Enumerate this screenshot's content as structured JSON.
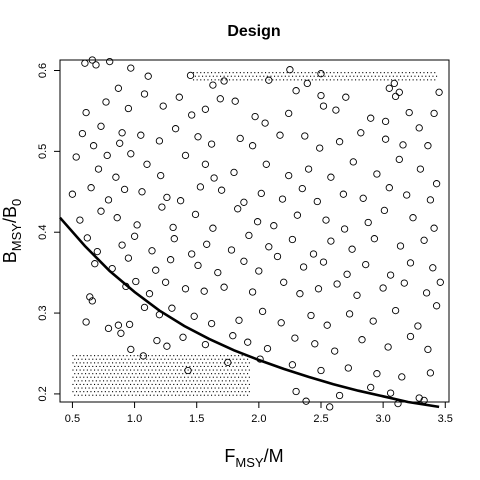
{
  "chart_data": {
    "type": "scatter",
    "title": "Design",
    "xlabel": {
      "main": "F",
      "sub": "MSY",
      "rest": "/M"
    },
    "ylabel": {
      "main": "B",
      "sub1": "MSY",
      "mid": "/B",
      "sub2": "0"
    },
    "xlim": [
      0.4,
      3.53
    ],
    "ylim": [
      0.19,
      0.613
    ],
    "xticks": [
      "0.5",
      "1.0",
      "1.5",
      "2.0",
      "2.5",
      "3.0",
      "3.5"
    ],
    "yticks": [
      "0.2",
      "0.3",
      "0.4",
      "0.5",
      "0.6"
    ],
    "grid": false,
    "colors": {
      "points": "#000000",
      "curve": "#000000",
      "frame": "#000000"
    },
    "curve": {
      "description": "boundary",
      "x": [
        0.4,
        0.6,
        0.8,
        1.0,
        1.2,
        1.4,
        1.6,
        1.8,
        2.0,
        2.2,
        2.4,
        2.6,
        2.8,
        3.0,
        3.2,
        3.45
      ],
      "y": [
        0.418,
        0.383,
        0.352,
        0.326,
        0.303,
        0.284,
        0.268,
        0.254,
        0.242,
        0.231,
        0.221,
        0.212,
        0.204,
        0.197,
        0.19,
        0.184
      ]
    },
    "dotted_regions": [
      {
        "name": "upper-right-region",
        "x": [
          1.47,
          3.43
        ],
        "y": [
          0.588,
          0.598
        ]
      },
      {
        "name": "lower-left-region",
        "x": [
          0.5,
          1.93
        ],
        "y": [
          0.196,
          0.248
        ]
      }
    ],
    "points": [
      [
        0.6,
        0.609
      ],
      [
        0.66,
        0.613
      ],
      [
        0.69,
        0.607
      ],
      [
        0.8,
        0.611
      ],
      [
        0.97,
        0.603
      ],
      [
        1.11,
        0.593
      ],
      [
        1.45,
        0.594
      ],
      [
        1.63,
        0.582
      ],
      [
        1.72,
        0.587
      ],
      [
        2.08,
        0.588
      ],
      [
        2.25,
        0.601
      ],
      [
        2.5,
        0.596
      ],
      [
        3.09,
        0.584
      ],
      [
        3.13,
        0.573
      ],
      [
        3.45,
        0.573
      ],
      [
        0.77,
        0.561
      ],
      [
        0.87,
        0.578
      ],
      [
        1.08,
        0.571
      ],
      [
        1.36,
        0.567
      ],
      [
        1.69,
        0.565
      ],
      [
        1.81,
        0.562
      ],
      [
        2.3,
        0.575
      ],
      [
        2.39,
        0.584
      ],
      [
        2.5,
        0.569
      ],
      [
        2.7,
        0.567
      ],
      [
        3.05,
        0.578
      ],
      [
        3.1,
        0.568
      ],
      [
        0.61,
        0.548
      ],
      [
        0.73,
        0.531
      ],
      [
        0.9,
        0.523
      ],
      [
        0.95,
        0.553
      ],
      [
        1.23,
        0.556
      ],
      [
        1.46,
        0.545
      ],
      [
        1.57,
        0.552
      ],
      [
        1.97,
        0.543
      ],
      [
        2.05,
        0.535
      ],
      [
        2.24,
        0.547
      ],
      [
        2.52,
        0.556
      ],
      [
        2.62,
        0.551
      ],
      [
        2.9,
        0.541
      ],
      [
        3.02,
        0.537
      ],
      [
        3.21,
        0.548
      ],
      [
        3.41,
        0.547
      ],
      [
        0.58,
        0.522
      ],
      [
        0.67,
        0.507
      ],
      [
        0.78,
        0.495
      ],
      [
        0.88,
        0.51
      ],
      [
        1.05,
        0.52
      ],
      [
        1.2,
        0.513
      ],
      [
        1.33,
        0.528
      ],
      [
        1.51,
        0.518
      ],
      [
        1.62,
        0.509
      ],
      [
        1.85,
        0.516
      ],
      [
        1.95,
        0.507
      ],
      [
        2.17,
        0.52
      ],
      [
        2.37,
        0.519
      ],
      [
        2.49,
        0.504
      ],
      [
        2.65,
        0.512
      ],
      [
        2.82,
        0.523
      ],
      [
        3.02,
        0.515
      ],
      [
        3.16,
        0.508
      ],
      [
        3.29,
        0.529
      ],
      [
        3.36,
        0.507
      ],
      [
        0.53,
        0.493
      ],
      [
        0.71,
        0.478
      ],
      [
        0.85,
        0.468
      ],
      [
        0.97,
        0.497
      ],
      [
        1.1,
        0.484
      ],
      [
        1.21,
        0.47
      ],
      [
        1.41,
        0.495
      ],
      [
        1.57,
        0.484
      ],
      [
        1.64,
        0.467
      ],
      [
        1.8,
        0.474
      ],
      [
        2.06,
        0.484
      ],
      [
        2.24,
        0.47
      ],
      [
        2.4,
        0.478
      ],
      [
        2.58,
        0.468
      ],
      [
        2.76,
        0.487
      ],
      [
        2.95,
        0.472
      ],
      [
        3.13,
        0.49
      ],
      [
        3.3,
        0.478
      ],
      [
        3.43,
        0.46
      ],
      [
        0.5,
        0.447
      ],
      [
        0.65,
        0.455
      ],
      [
        0.79,
        0.44
      ],
      [
        0.92,
        0.453
      ],
      [
        1.06,
        0.45
      ],
      [
        1.26,
        0.443
      ],
      [
        1.37,
        0.439
      ],
      [
        1.53,
        0.456
      ],
      [
        1.7,
        0.452
      ],
      [
        1.88,
        0.437
      ],
      [
        2.02,
        0.448
      ],
      [
        2.19,
        0.441
      ],
      [
        2.35,
        0.454
      ],
      [
        2.47,
        0.438
      ],
      [
        2.68,
        0.447
      ],
      [
        2.84,
        0.442
      ],
      [
        3.05,
        0.455
      ],
      [
        3.19,
        0.446
      ],
      [
        3.38,
        0.44
      ],
      [
        0.56,
        0.415
      ],
      [
        0.73,
        0.426
      ],
      [
        0.86,
        0.418
      ],
      [
        1.02,
        0.409
      ],
      [
        1.22,
        0.431
      ],
      [
        1.31,
        0.406
      ],
      [
        1.49,
        0.422
      ],
      [
        1.63,
        0.405
      ],
      [
        1.83,
        0.429
      ],
      [
        1.99,
        0.413
      ],
      [
        2.12,
        0.408
      ],
      [
        2.31,
        0.421
      ],
      [
        2.54,
        0.415
      ],
      [
        2.69,
        0.404
      ],
      [
        2.88,
        0.412
      ],
      [
        3.01,
        0.427
      ],
      [
        3.24,
        0.418
      ],
      [
        3.41,
        0.405
      ],
      [
        0.62,
        0.393
      ],
      [
        0.7,
        0.376
      ],
      [
        0.9,
        0.384
      ],
      [
        1.0,
        0.395
      ],
      [
        1.14,
        0.377
      ],
      [
        1.32,
        0.392
      ],
      [
        1.46,
        0.373
      ],
      [
        1.58,
        0.385
      ],
      [
        1.78,
        0.378
      ],
      [
        1.92,
        0.396
      ],
      [
        2.08,
        0.382
      ],
      [
        2.27,
        0.391
      ],
      [
        2.44,
        0.373
      ],
      [
        2.58,
        0.389
      ],
      [
        2.75,
        0.379
      ],
      [
        2.93,
        0.392
      ],
      [
        3.14,
        0.383
      ],
      [
        3.33,
        0.39
      ],
      [
        0.68,
        0.361
      ],
      [
        0.82,
        0.355
      ],
      [
        0.95,
        0.368
      ],
      [
        1.17,
        0.353
      ],
      [
        1.29,
        0.366
      ],
      [
        1.51,
        0.359
      ],
      [
        1.67,
        0.35
      ],
      [
        1.88,
        0.364
      ],
      [
        2.0,
        0.352
      ],
      [
        2.15,
        0.37
      ],
      [
        2.36,
        0.357
      ],
      [
        2.52,
        0.363
      ],
      [
        2.71,
        0.348
      ],
      [
        2.86,
        0.36
      ],
      [
        3.06,
        0.347
      ],
      [
        3.22,
        0.362
      ],
      [
        3.4,
        0.356
      ],
      [
        0.64,
        0.32
      ],
      [
        0.66,
        0.315
      ],
      [
        0.93,
        0.333
      ],
      [
        1.01,
        0.339
      ],
      [
        1.12,
        0.324
      ],
      [
        1.25,
        0.338
      ],
      [
        1.41,
        0.33
      ],
      [
        1.56,
        0.327
      ],
      [
        1.72,
        0.332
      ],
      [
        1.95,
        0.326
      ],
      [
        2.2,
        0.338
      ],
      [
        2.33,
        0.324
      ],
      [
        2.48,
        0.33
      ],
      [
        2.63,
        0.336
      ],
      [
        2.79,
        0.322
      ],
      [
        3.0,
        0.331
      ],
      [
        3.17,
        0.337
      ],
      [
        3.35,
        0.325
      ],
      [
        3.46,
        0.338
      ],
      [
        0.61,
        0.289
      ],
      [
        0.79,
        0.281
      ],
      [
        0.87,
        0.285
      ],
      [
        0.89,
        0.275
      ],
      [
        0.96,
        0.286
      ],
      [
        1.08,
        0.307
      ],
      [
        1.2,
        0.298
      ],
      [
        1.3,
        0.306
      ],
      [
        1.48,
        0.296
      ],
      [
        1.62,
        0.287
      ],
      [
        1.84,
        0.291
      ],
      [
        2.03,
        0.302
      ],
      [
        2.18,
        0.288
      ],
      [
        2.42,
        0.297
      ],
      [
        2.55,
        0.285
      ],
      [
        2.73,
        0.299
      ],
      [
        2.92,
        0.29
      ],
      [
        3.1,
        0.303
      ],
      [
        3.28,
        0.284
      ],
      [
        3.43,
        0.309
      ],
      [
        0.97,
        0.255
      ],
      [
        1.18,
        0.266
      ],
      [
        1.26,
        0.259
      ],
      [
        1.39,
        0.27
      ],
      [
        1.57,
        0.261
      ],
      [
        1.79,
        0.272
      ],
      [
        1.91,
        0.264
      ],
      [
        2.07,
        0.256
      ],
      [
        2.29,
        0.269
      ],
      [
        2.45,
        0.262
      ],
      [
        2.61,
        0.253
      ],
      [
        2.83,
        0.267
      ],
      [
        3.04,
        0.258
      ],
      [
        3.22,
        0.271
      ],
      [
        3.36,
        0.255
      ],
      [
        1.07,
        0.247
      ],
      [
        1.75,
        0.239
      ],
      [
        2.01,
        0.243
      ],
      [
        2.27,
        0.236
      ],
      [
        2.5,
        0.229
      ],
      [
        2.72,
        0.232
      ],
      [
        2.95,
        0.225
      ],
      [
        3.15,
        0.221
      ],
      [
        3.38,
        0.226
      ],
      [
        1.43,
        0.229
      ],
      [
        2.3,
        0.203
      ],
      [
        2.65,
        0.198
      ],
      [
        2.9,
        0.208
      ],
      [
        3.06,
        0.201
      ],
      [
        3.29,
        0.195
      ],
      [
        2.38,
        0.191
      ],
      [
        2.57,
        0.184
      ],
      [
        3.12,
        0.188
      ],
      [
        3.33,
        0.192
      ]
    ]
  }
}
